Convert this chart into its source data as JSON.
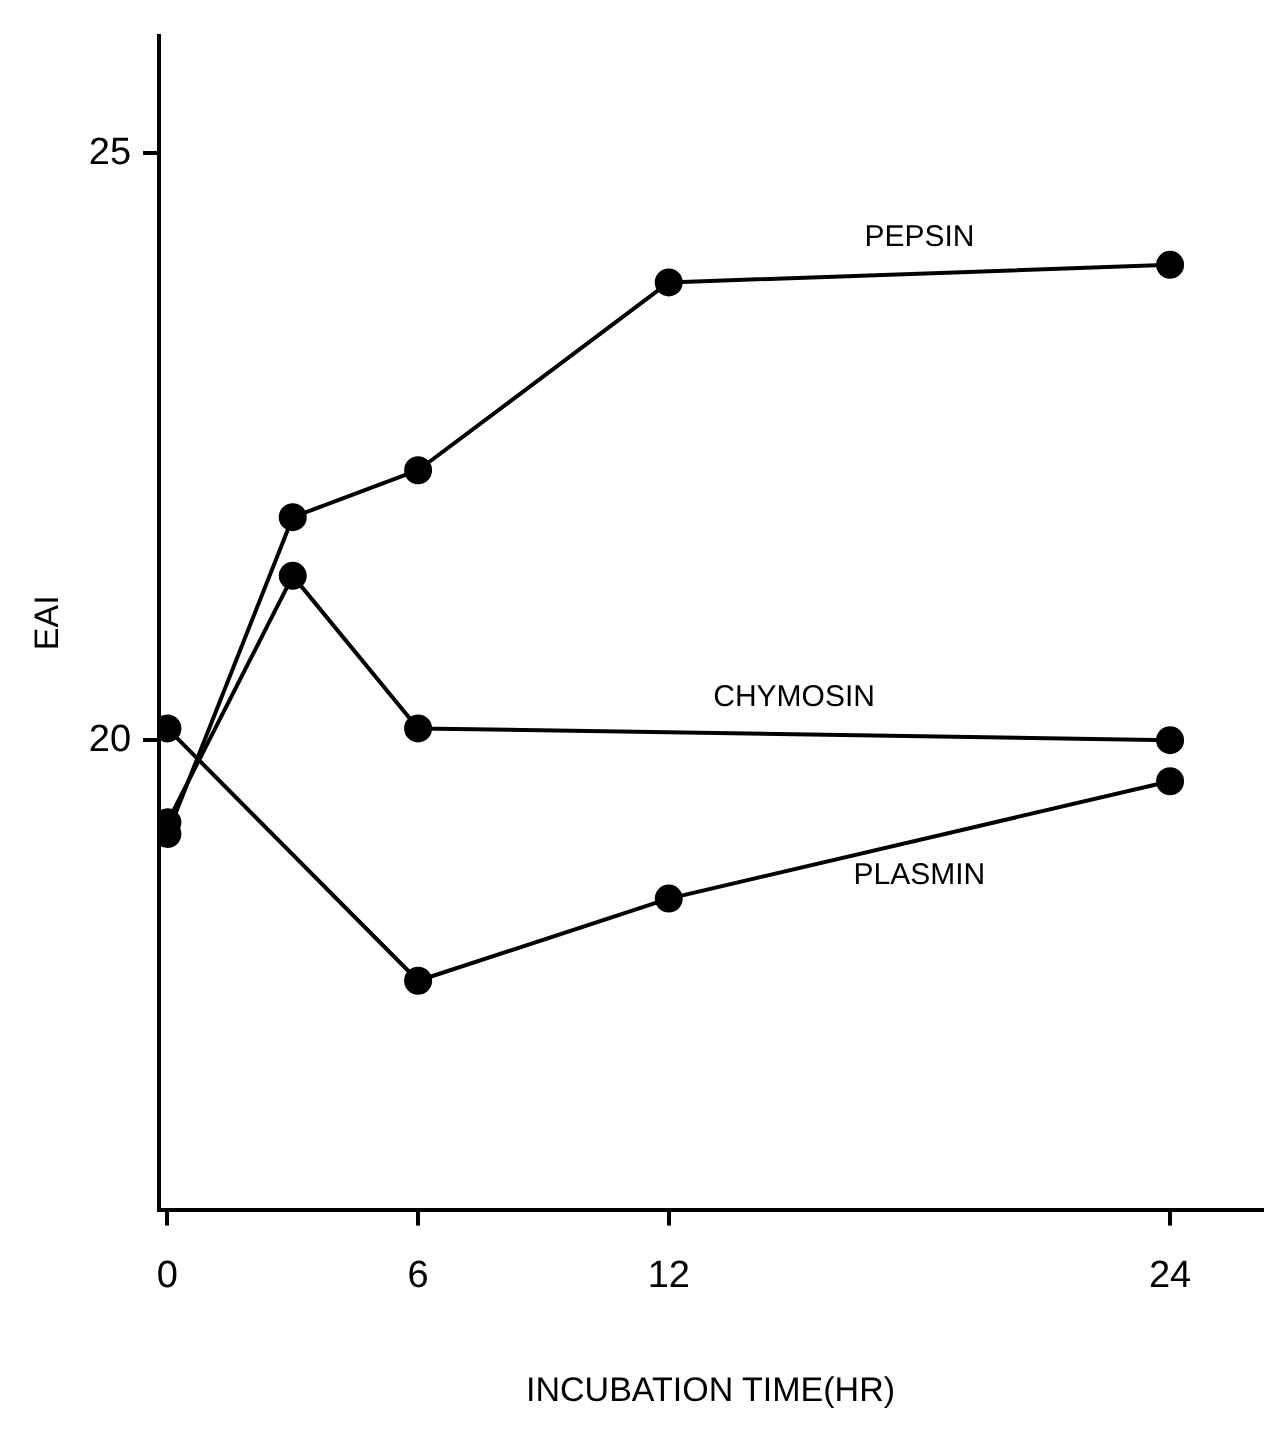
{
  "chart_data": {
    "type": "line",
    "xlabel": "INCUBATION TIME(HR)",
    "ylabel": "EAI",
    "x": [
      0,
      3,
      6,
      12,
      24
    ],
    "series": [
      {
        "name": "PEPSIN",
        "color": "#000000",
        "values": [
          19.2,
          21.9,
          22.3,
          23.9,
          24.05
        ]
      },
      {
        "name": "CHYMOSIN",
        "color": "#000000",
        "x": [
          0,
          3,
          6,
          24
        ],
        "values": [
          19.3,
          21.4,
          20.1,
          20.0
        ]
      },
      {
        "name": "PLASMIN",
        "color": "#000000",
        "x": [
          0,
          6,
          12,
          24
        ],
        "values": [
          20.1,
          17.95,
          18.65,
          19.65
        ]
      }
    ],
    "xlim": [
      -0.2,
      26.2
    ],
    "xticks": [
      0,
      6,
      12,
      24
    ],
    "ylim": [
      16,
      26
    ],
    "yticks": [
      20,
      25
    ],
    "grid": false,
    "legend": false,
    "marker": "circle",
    "line_style": "solid"
  }
}
